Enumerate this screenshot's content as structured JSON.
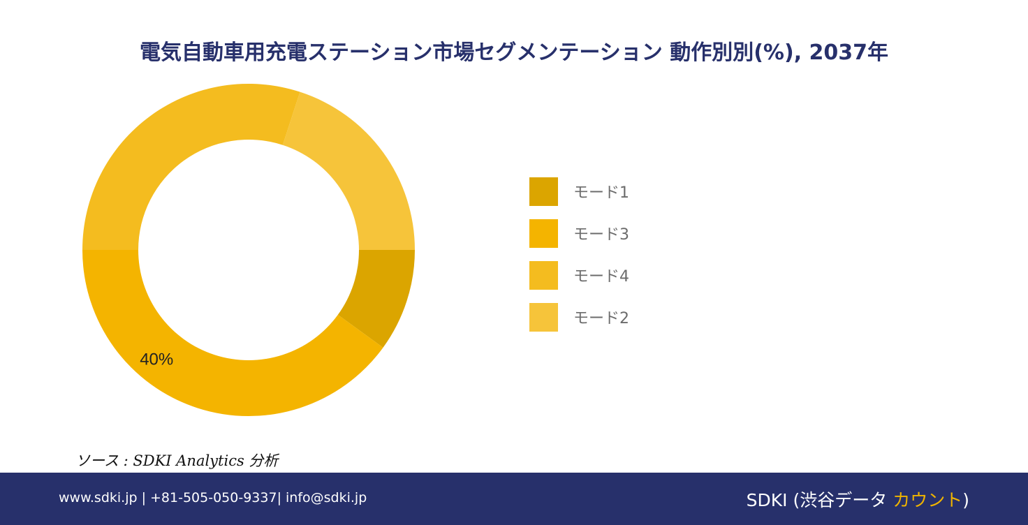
{
  "title": "電気自動車用充電ステーション市場セグメンテーション 動作別別(%), 2037年",
  "chart_data": {
    "type": "pie",
    "categories": [
      "モード1",
      "モード3",
      "モード4",
      "モード2"
    ],
    "values": [
      10,
      40,
      30,
      20
    ],
    "colors": [
      "#dba500",
      "#f4b400",
      "#f4bc1f",
      "#f6c43a"
    ],
    "data_labels": [
      "",
      "40%",
      "",
      ""
    ],
    "legend_position": "right"
  },
  "source": "ソース : SDKI Analytics 分析",
  "footer": {
    "contact": "www.sdki.jp | +81-505-050-9337| info@sdki.jp",
    "brand_prefix": "SDKI (渋谷データ ",
    "brand_accent": "カウント",
    "brand_suffix": ")"
  }
}
